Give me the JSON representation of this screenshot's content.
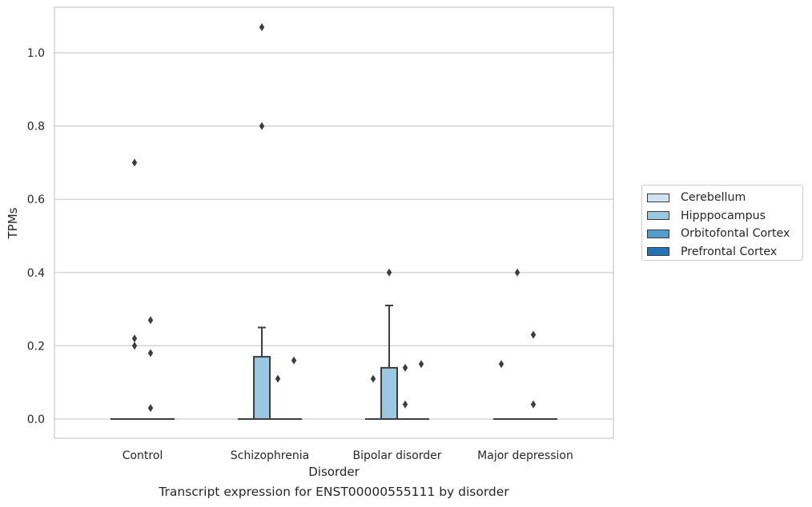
{
  "chart_data": {
    "type": "box",
    "title": "",
    "caption": "Transcript expression for ENST00000555111 by disorder",
    "xlabel": "Disorder",
    "ylabel": "TPMs",
    "ylim": [
      -0.052,
      1.125
    ],
    "yticks": [
      "0.0",
      "0.2",
      "0.4",
      "0.6",
      "0.8",
      "1.0"
    ],
    "grid": "horizontal",
    "legend_position": "right",
    "categories": [
      "Control",
      "Schizophrenia",
      "Bipolar disorder",
      "Major depression"
    ],
    "series": [
      {
        "name": "Cerebellum",
        "color": "#d1e2f1"
      },
      {
        "name": "Hipppocampus",
        "color": "#9ac8e0"
      },
      {
        "name": "Orbitofontal Cortex",
        "color": "#529dcb"
      },
      {
        "name": "Prefrontal Cortex",
        "color": "#2372b5"
      }
    ],
    "boxes": [
      {
        "category": "Control",
        "series": "Cerebellum",
        "q1": 0,
        "median": 0,
        "q3": 0,
        "whisker_low": 0,
        "whisker_high": 0,
        "outliers": []
      },
      {
        "category": "Control",
        "series": "Hipppocampus",
        "q1": 0,
        "median": 0,
        "q3": 0,
        "whisker_low": 0,
        "whisker_high": 0,
        "outliers": [
          0.7,
          0.22,
          0.2
        ]
      },
      {
        "category": "Control",
        "series": "Orbitofontal Cortex",
        "q1": 0,
        "median": 0,
        "q3": 0,
        "whisker_low": 0,
        "whisker_high": 0,
        "outliers": [
          0.27,
          0.18,
          0.03
        ]
      },
      {
        "category": "Control",
        "series": "Prefrontal Cortex",
        "q1": 0,
        "median": 0,
        "q3": 0,
        "whisker_low": 0,
        "whisker_high": 0,
        "outliers": []
      },
      {
        "category": "Schizophrenia",
        "series": "Cerebellum",
        "q1": 0,
        "median": 0,
        "q3": 0,
        "whisker_low": 0,
        "whisker_high": 0,
        "outliers": []
      },
      {
        "category": "Schizophrenia",
        "series": "Hipppocampus",
        "q1": 0,
        "median": 0,
        "q3": 0.17,
        "whisker_low": 0,
        "whisker_high": 0.25,
        "outliers": [
          1.07,
          0.8
        ]
      },
      {
        "category": "Schizophrenia",
        "series": "Orbitofontal Cortex",
        "q1": 0,
        "median": 0,
        "q3": 0,
        "whisker_low": 0,
        "whisker_high": 0,
        "outliers": [
          0.11
        ]
      },
      {
        "category": "Schizophrenia",
        "series": "Prefrontal Cortex",
        "q1": 0,
        "median": 0,
        "q3": 0,
        "whisker_low": 0,
        "whisker_high": 0,
        "outliers": [
          0.16
        ]
      },
      {
        "category": "Bipolar disorder",
        "series": "Cerebellum",
        "q1": 0,
        "median": 0,
        "q3": 0,
        "whisker_low": 0,
        "whisker_high": 0,
        "outliers": [
          0.11
        ]
      },
      {
        "category": "Bipolar disorder",
        "series": "Hipppocampus",
        "q1": 0,
        "median": 0,
        "q3": 0.14,
        "whisker_low": 0,
        "whisker_high": 0.31,
        "outliers": [
          0.4
        ]
      },
      {
        "category": "Bipolar disorder",
        "series": "Orbitofontal Cortex",
        "q1": 0,
        "median": 0,
        "q3": 0,
        "whisker_low": 0,
        "whisker_high": 0,
        "outliers": [
          0.14,
          0.04
        ]
      },
      {
        "category": "Bipolar disorder",
        "series": "Prefrontal Cortex",
        "q1": 0,
        "median": 0,
        "q3": 0,
        "whisker_low": 0,
        "whisker_high": 0,
        "outliers": [
          0.15
        ]
      },
      {
        "category": "Major depression",
        "series": "Cerebellum",
        "q1": 0,
        "median": 0,
        "q3": 0,
        "whisker_low": 0,
        "whisker_high": 0,
        "outliers": [
          0.15
        ]
      },
      {
        "category": "Major depression",
        "series": "Hipppocampus",
        "q1": 0,
        "median": 0,
        "q3": 0,
        "whisker_low": 0,
        "whisker_high": 0,
        "outliers": [
          0.4
        ]
      },
      {
        "category": "Major depression",
        "series": "Orbitofontal Cortex",
        "q1": 0,
        "median": 0,
        "q3": 0,
        "whisker_low": 0,
        "whisker_high": 0,
        "outliers": [
          0.23,
          0.04
        ]
      },
      {
        "category": "Major depression",
        "series": "Prefrontal Cortex",
        "q1": 0,
        "median": 0,
        "q3": 0,
        "whisker_low": 0,
        "whisker_high": 0,
        "outliers": []
      }
    ]
  }
}
